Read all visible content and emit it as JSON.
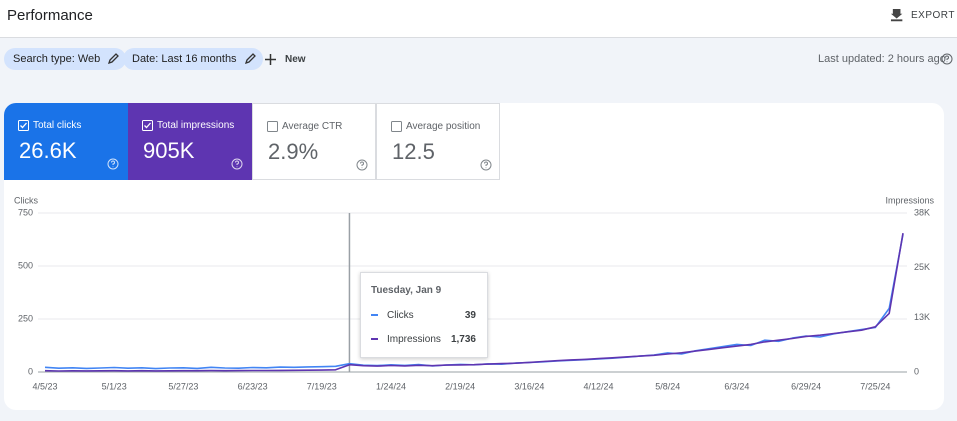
{
  "header": {
    "title": "Performance",
    "export": "EXPORT"
  },
  "filters": [
    "Search type: Web",
    "Date: Last 16 months",
    "New"
  ],
  "last_updated": "Last updated: 2 hours ago",
  "metrics": [
    {
      "label": "Total clicks",
      "value": "26.6K"
    },
    {
      "label": "Total impressions",
      "value": "905K"
    },
    {
      "label": "Average CTR",
      "value": "2.9%"
    },
    {
      "label": "Average position",
      "value": "12.5"
    }
  ],
  "tooltip": {
    "date": "Tuesday, Jan 9",
    "values": [
      "39",
      "1,736"
    ]
  },
  "chart_data": {
    "type": "line",
    "y_label": "Clicks",
    "y2_label": "Impressions",
    "categories": [
      "4/5/23",
      null,
      null,
      null,
      null,
      "5/1/23",
      null,
      null,
      null,
      null,
      "5/27/23",
      null,
      null,
      null,
      null,
      "6/23/23",
      null,
      null,
      null,
      null,
      "7/19/23",
      null,
      null,
      null,
      null,
      "1/24/24",
      null,
      null,
      null,
      null,
      "2/19/24",
      null,
      null,
      null,
      null,
      "3/16/24",
      null,
      null,
      null,
      null,
      "4/12/24",
      null,
      null,
      null,
      null,
      "5/8/24",
      null,
      null,
      null,
      null,
      "6/3/24",
      null,
      null,
      null,
      null,
      "6/29/24",
      null,
      null,
      null,
      null,
      "7/25/24",
      null,
      null
    ],
    "series": [
      {
        "name": "Clicks",
        "color": "#4285f4",
        "values": [
          22,
          18,
          20,
          17,
          19,
          21,
          18,
          20,
          16,
          19,
          20,
          17,
          22,
          19,
          18,
          21,
          20,
          23,
          22,
          24,
          25,
          27,
          39,
          32,
          30,
          34,
          31,
          35,
          29,
          33,
          36,
          34,
          38,
          37,
          42,
          45,
          48,
          52,
          55,
          58,
          62,
          65,
          70,
          75,
          80,
          90,
          85,
          100,
          110,
          120,
          130,
          125,
          150,
          145,
          160,
          170,
          165,
          180,
          190,
          200,
          210,
          300,
          650
        ]
      },
      {
        "name": "Impressions",
        "color": "#5e35b1",
        "axis": "y2",
        "values": [
          300,
          250,
          280,
          260,
          290,
          300,
          270,
          310,
          260,
          290,
          320,
          300,
          330,
          310,
          340,
          360,
          350,
          380,
          400,
          420,
          450,
          520,
          1736,
          1500,
          1400,
          1550,
          1450,
          1600,
          1500,
          1650,
          1700,
          1750,
          1900,
          2000,
          2100,
          2300,
          2500,
          2700,
          2900,
          3000,
          3200,
          3400,
          3600,
          3800,
          4000,
          4300,
          4600,
          5000,
          5400,
          5800,
          6200,
          6600,
          7200,
          7600,
          8000,
          8500,
          8800,
          9200,
          9600,
          10000,
          10800,
          14000,
          33200
        ]
      }
    ],
    "ylim": [
      0,
      750
    ],
    "yticks": [
      0,
      250,
      500,
      750
    ],
    "y2lim": [
      0,
      38000
    ],
    "y2ticks": [
      0,
      {
        "value": 13000,
        "label": "13K"
      },
      {
        "value": 25000,
        "label": "25K"
      },
      {
        "value": 38000,
        "label": "38K"
      }
    ],
    "grid": true
  }
}
